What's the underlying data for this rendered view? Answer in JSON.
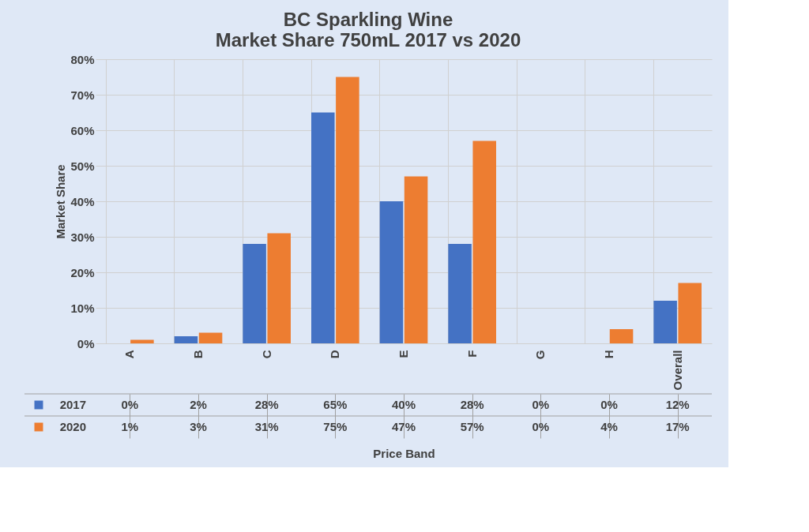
{
  "chart_data": {
    "type": "bar",
    "title": [
      "BC Sparkling Wine",
      "Market Share 750mL 2017 vs 2020"
    ],
    "xlabel": "Price Band",
    "ylabel": "Market Share",
    "categories": [
      "A",
      "B",
      "C",
      "D",
      "E",
      "F",
      "G",
      "H",
      "Overall"
    ],
    "series": [
      {
        "name": "2017",
        "color": "#4472c4",
        "values": [
          0,
          2,
          28,
          65,
          40,
          28,
          0,
          0,
          12
        ],
        "value_labels": [
          "0%",
          "2%",
          "28%",
          "65%",
          "40%",
          "28%",
          "0%",
          "0%",
          "12%"
        ]
      },
      {
        "name": "2020",
        "color": "#ed7d31",
        "values": [
          1,
          3,
          31,
          75,
          47,
          57,
          0,
          4,
          17
        ],
        "value_labels": [
          "1%",
          "3%",
          "31%",
          "75%",
          "47%",
          "57%",
          "0%",
          "4%",
          "17%"
        ]
      }
    ],
    "ylim": [
      0,
      80
    ],
    "yticks": [
      {
        "value": 0,
        "label": "0%"
      },
      {
        "value": 10,
        "label": "10%"
      },
      {
        "value": 20,
        "label": "20%"
      },
      {
        "value": 30,
        "label": "30%"
      },
      {
        "value": 40,
        "label": "40%"
      },
      {
        "value": 50,
        "label": "50%"
      },
      {
        "value": 60,
        "label": "60%"
      },
      {
        "value": 70,
        "label": "70%"
      },
      {
        "value": 80,
        "label": "80%"
      }
    ],
    "grid": true,
    "legend": "bottom"
  }
}
